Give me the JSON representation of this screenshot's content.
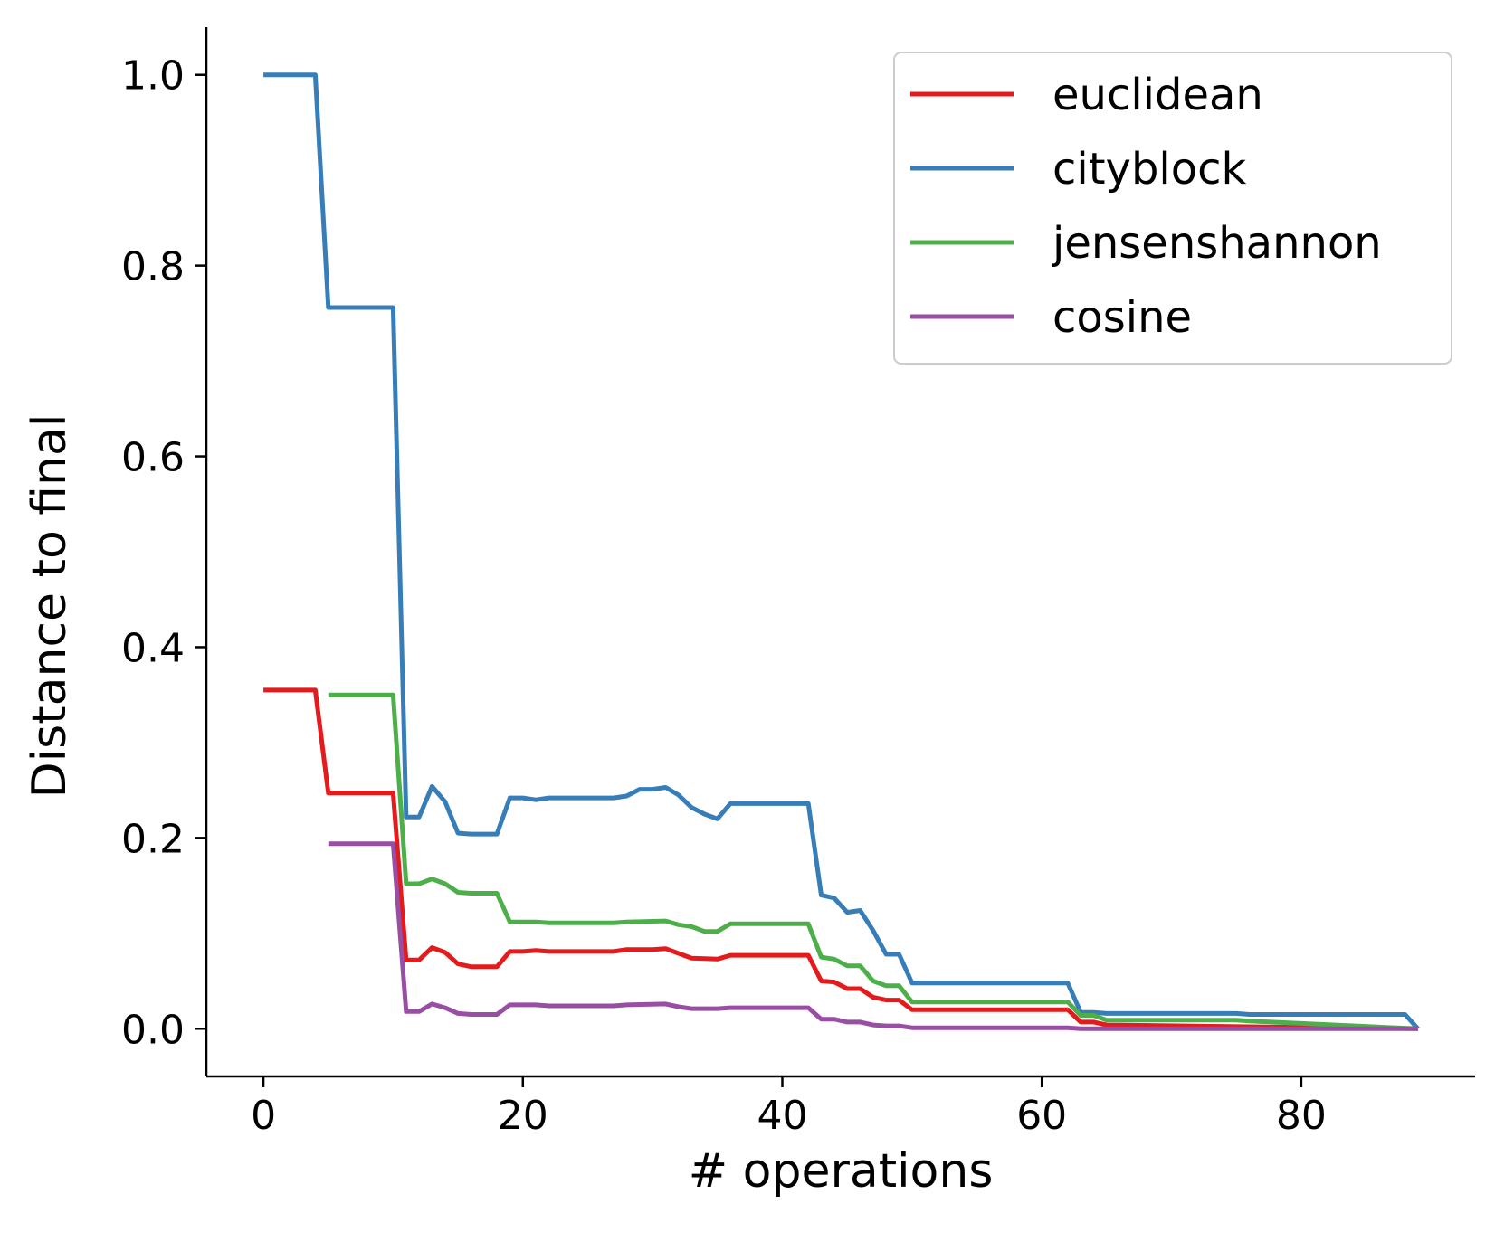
{
  "chart_data": {
    "type": "line",
    "title": "",
    "xlabel": "# operations",
    "ylabel": "Distance to final",
    "xlim": [
      -4.4,
      93.4
    ],
    "ylim": [
      -0.05,
      1.05
    ],
    "xticks": [
      0,
      20,
      40,
      60,
      80
    ],
    "xtick_labels": [
      "0",
      "20",
      "40",
      "60",
      "80"
    ],
    "yticks": [
      0.0,
      0.2,
      0.4,
      0.6,
      0.8,
      1.0
    ],
    "ytick_labels": [
      "0.0",
      "0.2",
      "0.4",
      "0.6",
      "0.8",
      "1.0"
    ],
    "grid": false,
    "legend_position": "top-right",
    "series": [
      {
        "name": "euclidean",
        "color": "#e41a1c",
        "points": [
          [
            0,
            0.355
          ],
          [
            4,
            0.355
          ],
          [
            5,
            0.247
          ],
          [
            10,
            0.247
          ],
          [
            11,
            0.072
          ],
          [
            12,
            0.072
          ],
          [
            13,
            0.085
          ],
          [
            14,
            0.08
          ],
          [
            15,
            0.068
          ],
          [
            16,
            0.065
          ],
          [
            18,
            0.065
          ],
          [
            19,
            0.081
          ],
          [
            20,
            0.081
          ],
          [
            21,
            0.082
          ],
          [
            22,
            0.081
          ],
          [
            27,
            0.081
          ],
          [
            28,
            0.083
          ],
          [
            30,
            0.083
          ],
          [
            31,
            0.084
          ],
          [
            32,
            0.079
          ],
          [
            33,
            0.074
          ],
          [
            35,
            0.073
          ],
          [
            36,
            0.077
          ],
          [
            42,
            0.077
          ],
          [
            43,
            0.05
          ],
          [
            44,
            0.049
          ],
          [
            45,
            0.042
          ],
          [
            46,
            0.042
          ],
          [
            47,
            0.033
          ],
          [
            48,
            0.03
          ],
          [
            49,
            0.03
          ],
          [
            50,
            0.02
          ],
          [
            52,
            0.02
          ],
          [
            53,
            0.02
          ],
          [
            62,
            0.02
          ],
          [
            63,
            0.007
          ],
          [
            64,
            0.007
          ],
          [
            65,
            0.004
          ],
          [
            89,
            0.0
          ]
        ]
      },
      {
        "name": "cityblock",
        "color": "#377eb8",
        "points": [
          [
            0,
            1.0
          ],
          [
            4,
            1.0
          ],
          [
            5,
            0.756
          ],
          [
            10,
            0.756
          ],
          [
            11,
            0.222
          ],
          [
            12,
            0.222
          ],
          [
            13,
            0.254
          ],
          [
            14,
            0.238
          ],
          [
            15,
            0.205
          ],
          [
            16,
            0.204
          ],
          [
            18,
            0.204
          ],
          [
            19,
            0.242
          ],
          [
            20,
            0.242
          ],
          [
            21,
            0.24
          ],
          [
            22,
            0.242
          ],
          [
            27,
            0.242
          ],
          [
            28,
            0.244
          ],
          [
            29,
            0.251
          ],
          [
            30,
            0.251
          ],
          [
            31,
            0.253
          ],
          [
            32,
            0.245
          ],
          [
            33,
            0.232
          ],
          [
            34,
            0.225
          ],
          [
            35,
            0.22
          ],
          [
            36,
            0.236
          ],
          [
            42,
            0.236
          ],
          [
            43,
            0.14
          ],
          [
            44,
            0.137
          ],
          [
            45,
            0.122
          ],
          [
            46,
            0.124
          ],
          [
            47,
            0.103
          ],
          [
            48,
            0.078
          ],
          [
            49,
            0.078
          ],
          [
            50,
            0.048
          ],
          [
            53,
            0.048
          ],
          [
            62,
            0.048
          ],
          [
            63,
            0.017
          ],
          [
            64,
            0.017
          ],
          [
            65,
            0.016
          ],
          [
            75,
            0.016
          ],
          [
            76,
            0.015
          ],
          [
            88,
            0.015
          ],
          [
            89,
            0.0
          ]
        ]
      },
      {
        "name": "jensenshannon",
        "color": "#4daf4a",
        "points": [
          [
            5,
            0.35
          ],
          [
            10,
            0.35
          ],
          [
            11,
            0.152
          ],
          [
            12,
            0.152
          ],
          [
            13,
            0.157
          ],
          [
            14,
            0.152
          ],
          [
            15,
            0.143
          ],
          [
            16,
            0.142
          ],
          [
            18,
            0.142
          ],
          [
            19,
            0.112
          ],
          [
            21,
            0.112
          ],
          [
            22,
            0.111
          ],
          [
            27,
            0.111
          ],
          [
            28,
            0.112
          ],
          [
            31,
            0.113
          ],
          [
            32,
            0.109
          ],
          [
            33,
            0.107
          ],
          [
            34,
            0.102
          ],
          [
            35,
            0.102
          ],
          [
            36,
            0.11
          ],
          [
            42,
            0.11
          ],
          [
            43,
            0.075
          ],
          [
            44,
            0.073
          ],
          [
            45,
            0.066
          ],
          [
            46,
            0.066
          ],
          [
            47,
            0.05
          ],
          [
            48,
            0.045
          ],
          [
            49,
            0.045
          ],
          [
            50,
            0.028
          ],
          [
            62,
            0.028
          ],
          [
            63,
            0.014
          ],
          [
            64,
            0.014
          ],
          [
            65,
            0.009
          ],
          [
            75,
            0.009
          ],
          [
            76,
            0.008
          ],
          [
            89,
            0.0
          ]
        ]
      },
      {
        "name": "cosine",
        "color": "#984ea3",
        "points": [
          [
            5,
            0.194
          ],
          [
            10,
            0.194
          ],
          [
            11,
            0.018
          ],
          [
            12,
            0.018
          ],
          [
            13,
            0.026
          ],
          [
            14,
            0.022
          ],
          [
            15,
            0.016
          ],
          [
            16,
            0.015
          ],
          [
            18,
            0.015
          ],
          [
            19,
            0.025
          ],
          [
            21,
            0.025
          ],
          [
            22,
            0.024
          ],
          [
            27,
            0.024
          ],
          [
            28,
            0.025
          ],
          [
            31,
            0.026
          ],
          [
            32,
            0.023
          ],
          [
            33,
            0.021
          ],
          [
            35,
            0.021
          ],
          [
            36,
            0.022
          ],
          [
            42,
            0.022
          ],
          [
            43,
            0.01
          ],
          [
            44,
            0.01
          ],
          [
            45,
            0.007
          ],
          [
            46,
            0.007
          ],
          [
            47,
            0.004
          ],
          [
            48,
            0.003
          ],
          [
            49,
            0.003
          ],
          [
            50,
            0.001
          ],
          [
            62,
            0.001
          ],
          [
            63,
            0.0
          ],
          [
            89,
            0.0
          ]
        ]
      }
    ]
  }
}
